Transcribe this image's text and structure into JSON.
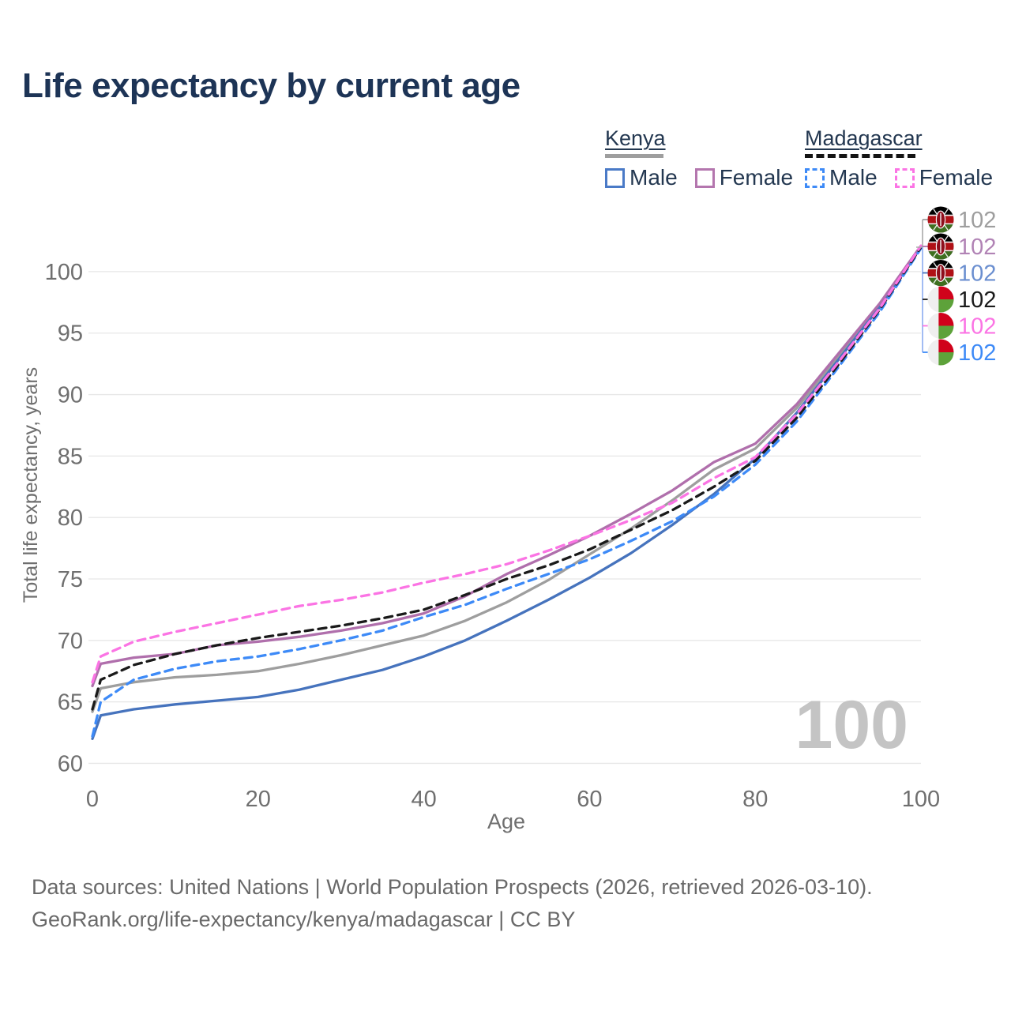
{
  "title": "Life expectancy by current age",
  "watermark_age": "100",
  "legend": {
    "groups": [
      {
        "country": "Kenya",
        "underline_style": "solid",
        "underline_color": "#9e9e9e",
        "items": [
          {
            "label": "Male",
            "swatch_color": "#4a7ac7",
            "swatch_style": "solid"
          },
          {
            "label": "Female",
            "swatch_color": "#b476ae",
            "swatch_style": "solid"
          }
        ]
      },
      {
        "country": "Madagascar",
        "underline_style": "dashed",
        "underline_color": "#141414",
        "items": [
          {
            "label": "Male",
            "swatch_color": "#3d8af7",
            "swatch_style": "dashed"
          },
          {
            "label": "Female",
            "swatch_color": "#fb74e4",
            "swatch_style": "dashed"
          }
        ]
      }
    ]
  },
  "chart_data": {
    "type": "line",
    "title": "Life expectancy by current age",
    "xlabel": "Age",
    "ylabel": "Total life expectancy, years",
    "xlim": [
      0,
      100
    ],
    "ylim": [
      58,
      103.5
    ],
    "x_ticks": [
      0,
      20,
      40,
      60,
      80,
      100
    ],
    "y_ticks": [
      60,
      65,
      70,
      75,
      80,
      85,
      90,
      95,
      100
    ],
    "grid": "horizontal",
    "legend_position": "top-right",
    "ages": [
      0,
      1,
      5,
      10,
      15,
      20,
      25,
      30,
      35,
      40,
      45,
      50,
      55,
      60,
      65,
      70,
      75,
      80,
      85,
      90,
      95,
      100
    ],
    "series": [
      {
        "id": "kenya-total",
        "country": "Kenya",
        "sex": "both",
        "flag": "kenya",
        "color": "#9e9e9e",
        "line_style": "solid",
        "end_label": "102",
        "end_label_color": "#9e9e9e",
        "values": [
          64.2,
          66.1,
          66.6,
          67.0,
          67.2,
          67.5,
          68.1,
          68.8,
          69.6,
          70.4,
          71.6,
          73.1,
          74.9,
          77.0,
          79.1,
          81.4,
          83.9,
          85.6,
          88.9,
          93.0,
          97.2,
          102.0
        ]
      },
      {
        "id": "kenya-female",
        "country": "Kenya",
        "sex": "Female",
        "flag": "kenya",
        "color": "#b06fac",
        "line_style": "solid",
        "end_label": "102",
        "end_label_color": "#b183b5",
        "values": [
          66.3,
          68.1,
          68.6,
          68.9,
          69.6,
          69.9,
          70.3,
          70.8,
          71.4,
          72.2,
          73.6,
          75.4,
          76.9,
          78.5,
          80.3,
          82.2,
          84.5,
          86.0,
          89.2,
          93.3,
          97.4,
          102.1
        ]
      },
      {
        "id": "kenya-male",
        "country": "Kenya",
        "sex": "Male",
        "flag": "kenya",
        "color": "#4673bd",
        "line_style": "solid",
        "end_label": "102",
        "end_label_color": "#6b8fd0",
        "values": [
          62.0,
          63.9,
          64.4,
          64.8,
          65.1,
          65.4,
          66.0,
          66.8,
          67.6,
          68.7,
          70.0,
          71.6,
          73.3,
          75.1,
          77.1,
          79.4,
          81.9,
          84.8,
          88.5,
          92.8,
          97.1,
          102.0
        ]
      },
      {
        "id": "madagascar-total",
        "country": "Madagascar",
        "sex": "both",
        "flag": "madagascar",
        "color": "#1a1a1a",
        "line_style": "dashed",
        "end_label": "102",
        "end_label_color": "#1a1a1a",
        "values": [
          64.4,
          66.8,
          68.0,
          68.9,
          69.6,
          70.2,
          70.7,
          71.2,
          71.8,
          72.5,
          73.7,
          75.0,
          76.1,
          77.4,
          79.0,
          80.6,
          82.5,
          84.6,
          88.1,
          92.4,
          96.9,
          102.0
        ]
      },
      {
        "id": "madagascar-female",
        "country": "Madagascar",
        "sex": "Female",
        "flag": "madagascar",
        "color": "#fb74e4",
        "line_style": "dashed",
        "end_label": "102",
        "end_label_color": "#fb74e4",
        "values": [
          66.6,
          68.7,
          69.9,
          70.7,
          71.4,
          72.1,
          72.8,
          73.3,
          73.9,
          74.7,
          75.4,
          76.2,
          77.3,
          78.5,
          79.8,
          81.2,
          83.2,
          84.9,
          88.4,
          92.6,
          97.0,
          102.1
        ]
      },
      {
        "id": "madagascar-male",
        "country": "Madagascar",
        "sex": "Male",
        "flag": "madagascar",
        "color": "#3d8af7",
        "line_style": "dashed",
        "end_label": "102",
        "end_label_color": "#3d8af7",
        "values": [
          62.2,
          65.0,
          66.8,
          67.7,
          68.3,
          68.7,
          69.3,
          70.0,
          70.8,
          71.9,
          72.9,
          74.2,
          75.4,
          76.6,
          78.1,
          79.7,
          81.7,
          84.3,
          87.8,
          92.2,
          96.7,
          101.9
        ]
      }
    ]
  },
  "footer": {
    "line1": "Data sources: United Nations | World Population Prospects (2026, retrieved 2026-03-10).",
    "line2": "GeoRank.org/life-expectancy/kenya/madagascar | CC BY"
  }
}
